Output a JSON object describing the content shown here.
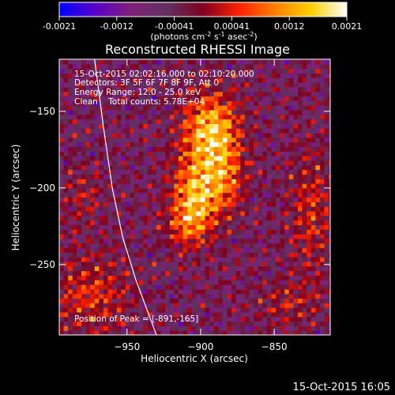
{
  "colorbar": {
    "ticks": [
      "-0.0021",
      "-0.0012",
      "-0.00041",
      "0.00041",
      "0.0012",
      "0.0021"
    ],
    "units_prefix": "(photons cm",
    "units_exp1": "-2",
    "units_mid1": " s",
    "units_exp2": "-1",
    "units_mid2": " asec",
    "units_exp3": "-2",
    "units_suffix": ")",
    "colors": [
      "#0000ff",
      "#5a00c8",
      "#80207a",
      "#603060",
      "#800020",
      "#ff2000",
      "#ff8000",
      "#ffd000",
      "#ffffff"
    ]
  },
  "chart_data": {
    "type": "heatmap",
    "title": "Reconstructed RHESSI Image",
    "xlabel": "Heliocentric X (arcsec)",
    "ylabel": "Heliocentric Y (arcsec)",
    "xlim": [
      -996,
      -812
    ],
    "ylim": [
      -296,
      -116
    ],
    "x_ticks": [
      -950,
      -900,
      -850
    ],
    "x_tick_labels": [
      "−950",
      "−900",
      "−850"
    ],
    "y_ticks": [
      -150,
      -200,
      -250
    ],
    "y_tick_labels": [
      "−150",
      "−200",
      "−250"
    ],
    "value_range": [
      -0.0021,
      0.0021
    ],
    "peak": [
      -891,
      -165
    ],
    "info": [
      "15-Oct-2015 02:02:16.000 to 02:10:20.000",
      "Detectors: 3F 5F 6F 7F 8F 9F, Att 0",
      "Energy Range: 12.0 - 25.0 keV",
      "Clean    Total counts: 5.78E+04"
    ],
    "peak_label": "Position of Peak = [-891,-165]",
    "limb_curve": [
      [
        -972,
        -116
      ],
      [
        -966,
        -160
      ],
      [
        -960,
        -200
      ],
      [
        -953,
        -232
      ],
      [
        -944,
        -260
      ],
      [
        -930,
        -296
      ]
    ],
    "sources": [
      {
        "x": -893,
        "y": -163,
        "sx": 13,
        "sy": 17,
        "amp": 0.0021
      },
      {
        "x": -903,
        "y": -205,
        "sx": 11,
        "sy": 17,
        "amp": 0.0019
      },
      {
        "x": -883,
        "y": -194,
        "sx": 9,
        "sy": 15,
        "amp": 0.0011
      },
      {
        "x": -910,
        "y": -225,
        "sx": 10,
        "sy": 10,
        "amp": 0.0008
      },
      {
        "x": -825,
        "y": -215,
        "sx": 10,
        "sy": 28,
        "amp": 0.0008
      },
      {
        "x": -975,
        "y": -270,
        "sx": 18,
        "sy": 18,
        "amp": 0.0009
      },
      {
        "x": -840,
        "y": -275,
        "sx": 14,
        "sy": 10,
        "amp": 0.0006
      },
      {
        "x": -980,
        "y": -205,
        "sx": 9,
        "sy": 14,
        "amp": 0.0005
      }
    ]
  },
  "footer": {
    "date_time": "15-Oct-2015 16:05"
  }
}
